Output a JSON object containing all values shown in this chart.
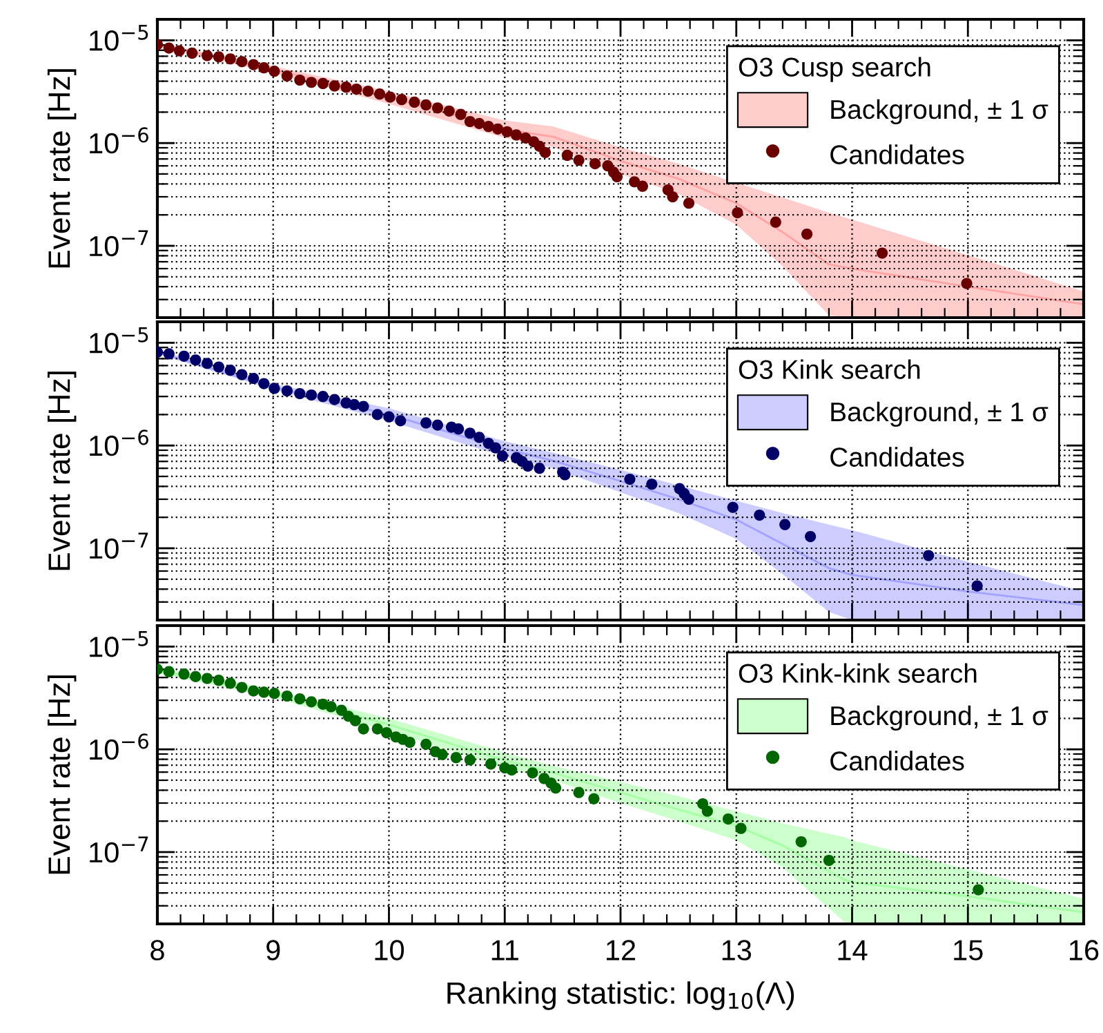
{
  "chart_data": [
    {
      "type": "scatter",
      "ylabel": "Event rate [Hz]",
      "legend_title": "O3 Cusp search",
      "log": "y",
      "grid": true,
      "legend": "top right",
      "marker": "circle",
      "tick_labels": "y",
      "xlim": [
        8,
        16
      ],
      "ylim": [
        2e-08,
        1.6e-05
      ],
      "xticks": [
        8,
        {
          "value": 8.2,
          "label": null
        },
        {
          "value": 8.4,
          "label": null
        },
        {
          "value": 8.6,
          "label": null
        },
        {
          "value": 8.8,
          "label": null
        },
        9,
        {
          "value": 9.2,
          "label": null
        },
        {
          "value": 9.4,
          "label": null
        },
        {
          "value": 9.6,
          "label": null
        },
        {
          "value": 9.8,
          "label": null
        },
        10,
        {
          "value": 10.2,
          "label": null
        },
        {
          "value": 10.4,
          "label": null
        },
        {
          "value": 10.6,
          "label": null
        },
        {
          "value": 10.8,
          "label": null
        },
        11,
        {
          "value": 11.2,
          "label": null
        },
        {
          "value": 11.4,
          "label": null
        },
        {
          "value": 11.6,
          "label": null
        },
        {
          "value": 11.8,
          "label": null
        },
        12,
        {
          "value": 12.2,
          "label": null
        },
        {
          "value": 12.4,
          "label": null
        },
        {
          "value": 12.6,
          "label": null
        },
        {
          "value": 12.8,
          "label": null
        },
        13,
        {
          "value": 13.2,
          "label": null
        },
        {
          "value": 13.4,
          "label": null
        },
        {
          "value": 13.6,
          "label": null
        },
        {
          "value": 13.8,
          "label": null
        },
        14,
        {
          "value": 14.2,
          "label": null
        },
        {
          "value": 14.4,
          "label": null
        },
        {
          "value": 14.6,
          "label": null
        },
        {
          "value": 14.8,
          "label": null
        },
        15,
        {
          "value": 15.2,
          "label": null
        },
        {
          "value": 15.4,
          "label": null
        },
        {
          "value": 15.6,
          "label": null
        },
        {
          "value": 15.8,
          "label": null
        },
        16
      ],
      "yticks": [
        {
          "value": 2e-08,
          "label": null
        },
        {
          "value": 3e-08,
          "label": null
        },
        {
          "value": 4e-08,
          "label": null
        },
        {
          "value": 5e-08,
          "label": null
        },
        {
          "value": 6e-08,
          "label": null
        },
        {
          "value": 7e-08,
          "label": null
        },
        {
          "value": 8e-08,
          "label": null
        },
        {
          "value": 9e-08,
          "label": null
        },
        {
          "value": 1e-07,
          "label": "10$^{−7}$"
        },
        {
          "value": 2e-07,
          "label": null
        },
        {
          "value": 3e-07,
          "label": null
        },
        {
          "value": 4e-07,
          "label": null
        },
        {
          "value": 5e-07,
          "label": null
        },
        {
          "value": 6e-07,
          "label": null
        },
        {
          "value": 7e-07,
          "label": null
        },
        {
          "value": 8e-07,
          "label": null
        },
        {
          "value": 9e-07,
          "label": null
        },
        {
          "value": 1e-06,
          "label": "10$^{−6}$"
        },
        {
          "value": 2e-06,
          "label": null
        },
        {
          "value": 3e-06,
          "label": null
        },
        {
          "value": 4e-06,
          "label": null
        },
        {
          "value": 5e-06,
          "label": null
        },
        {
          "value": 6e-06,
          "label": null
        },
        {
          "value": 7e-06,
          "label": null
        },
        {
          "value": 8e-06,
          "label": null
        },
        {
          "value": 9e-06,
          "label": null
        },
        {
          "value": 1e-05,
          "label": "10$^{−5}$"
        }
      ],
      "series": [
        {
          "type": "line",
          "name": "Background, ± 1 σ",
          "color": "#ffa2a2",
          "x": [
            8,
            9,
            10,
            11,
            11.42,
            12,
            12.5,
            13,
            13.4,
            13.8,
            14,
            15,
            16
          ],
          "marker": "none",
          "values": [
            9.1e-06,
            5.2e-06,
            2.8e-06,
            1.36e-06,
            1.15e-06,
            6.7e-07,
            4.5e-07,
            2.6e-07,
            1.36e-07,
            6.6e-08,
            6e-08,
            4e-08,
            2.7e-08
          ],
          "lower": [
            8.7e-06,
            4.8e-06,
            2.4e-06,
            1.12e-06,
            9.1e-07,
            5e-07,
            3.2e-07,
            1.6e-07,
            6.3e-08,
            2.1e-08,
            2e-08,
            2e-08,
            2e-08
          ],
          "upper": [
            9.5e-06,
            5.6e-06,
            3.2e-06,
            1.66e-06,
            1.45e-06,
            9.1e-07,
            6.3e-07,
            4.1e-07,
            2.95e-07,
            2.1e-07,
            1.8e-07,
            8.1e-08,
            3.6e-08
          ]
        },
        {
          "name": "Candidates",
          "color": "#6b0000",
          "x": [
            8.0,
            8.1,
            8.19,
            8.3,
            8.43,
            8.53,
            8.63,
            8.73,
            8.83,
            8.92,
            9.01,
            9.12,
            9.23,
            9.33,
            9.43,
            9.53,
            9.63,
            9.72,
            9.82,
            9.92,
            10.01,
            10.11,
            10.22,
            10.32,
            10.42,
            10.52,
            10.62,
            10.7,
            10.78,
            10.86,
            10.94,
            11.02,
            11.1,
            11.18,
            11.25,
            11.3,
            11.35,
            11.54,
            11.64,
            11.78,
            11.89,
            11.94,
            11.97,
            12.12,
            12.19,
            12.41,
            12.45,
            12.59,
            13.01,
            13.34,
            13.61,
            14.26,
            14.99
          ],
          "values": [
            9.1e-06,
            8.4e-06,
            7.9e-06,
            7.5e-06,
            7.1e-06,
            6.9e-06,
            6.6e-06,
            6.2e-06,
            5.8e-06,
            5.4e-06,
            5e-06,
            4.5e-06,
            4.1e-06,
            3.9e-06,
            3.8e-06,
            3.6e-06,
            3.5e-06,
            3.35e-06,
            3.2e-06,
            3e-06,
            2.8e-06,
            2.65e-06,
            2.5e-06,
            2.35e-06,
            2.2e-06,
            2.05e-06,
            1.9e-06,
            1.62e-06,
            1.55e-06,
            1.45e-06,
            1.37e-06,
            1.29e-06,
            1.2e-06,
            1.12e-06,
            1.03e-06,
            9.3e-07,
            8.1e-07,
            7.6e-07,
            6.8e-07,
            6.3e-07,
            6e-07,
            5.2e-07,
            4.7e-07,
            4.2e-07,
            3.8e-07,
            3.5e-07,
            3e-07,
            2.6e-07,
            2.1e-07,
            1.7e-07,
            1.3e-07,
            8.5e-08,
            4.3e-08
          ]
        }
      ]
    },
    {
      "type": "scatter",
      "ylabel": "Event rate [Hz]",
      "legend_title": "O3 Kink search",
      "log": "y",
      "grid": true,
      "legend": "top right",
      "marker": "circle",
      "tick_labels": "y",
      "xlim": [
        8,
        16
      ],
      "ylim": [
        2e-08,
        1.6e-05
      ],
      "xticks": [
        8,
        {
          "value": 8.2,
          "label": null
        },
        {
          "value": 8.4,
          "label": null
        },
        {
          "value": 8.6,
          "label": null
        },
        {
          "value": 8.8,
          "label": null
        },
        9,
        {
          "value": 9.2,
          "label": null
        },
        {
          "value": 9.4,
          "label": null
        },
        {
          "value": 9.6,
          "label": null
        },
        {
          "value": 9.8,
          "label": null
        },
        10,
        {
          "value": 10.2,
          "label": null
        },
        {
          "value": 10.4,
          "label": null
        },
        {
          "value": 10.6,
          "label": null
        },
        {
          "value": 10.8,
          "label": null
        },
        11,
        {
          "value": 11.2,
          "label": null
        },
        {
          "value": 11.4,
          "label": null
        },
        {
          "value": 11.6,
          "label": null
        },
        {
          "value": 11.8,
          "label": null
        },
        12,
        {
          "value": 12.2,
          "label": null
        },
        {
          "value": 12.4,
          "label": null
        },
        {
          "value": 12.6,
          "label": null
        },
        {
          "value": 12.8,
          "label": null
        },
        13,
        {
          "value": 13.2,
          "label": null
        },
        {
          "value": 13.4,
          "label": null
        },
        {
          "value": 13.6,
          "label": null
        },
        {
          "value": 13.8,
          "label": null
        },
        14,
        {
          "value": 14.2,
          "label": null
        },
        {
          "value": 14.4,
          "label": null
        },
        {
          "value": 14.6,
          "label": null
        },
        {
          "value": 14.8,
          "label": null
        },
        15,
        {
          "value": 15.2,
          "label": null
        },
        {
          "value": 15.4,
          "label": null
        },
        {
          "value": 15.6,
          "label": null
        },
        {
          "value": 15.8,
          "label": null
        },
        16
      ],
      "yticks": [
        {
          "value": 2e-08,
          "label": null
        },
        {
          "value": 3e-08,
          "label": null
        },
        {
          "value": 4e-08,
          "label": null
        },
        {
          "value": 5e-08,
          "label": null
        },
        {
          "value": 6e-08,
          "label": null
        },
        {
          "value": 7e-08,
          "label": null
        },
        {
          "value": 8e-08,
          "label": null
        },
        {
          "value": 9e-08,
          "label": null
        },
        {
          "value": 1e-07,
          "label": "10$^{−7}$"
        },
        {
          "value": 2e-07,
          "label": null
        },
        {
          "value": 3e-07,
          "label": null
        },
        {
          "value": 4e-07,
          "label": null
        },
        {
          "value": 5e-07,
          "label": null
        },
        {
          "value": 6e-07,
          "label": null
        },
        {
          "value": 7e-07,
          "label": null
        },
        {
          "value": 8e-07,
          "label": null
        },
        {
          "value": 9e-07,
          "label": null
        },
        {
          "value": 1e-06,
          "label": "10$^{−6}$"
        },
        {
          "value": 2e-06,
          "label": null
        },
        {
          "value": 3e-06,
          "label": null
        },
        {
          "value": 4e-06,
          "label": null
        },
        {
          "value": 5e-06,
          "label": null
        },
        {
          "value": 6e-06,
          "label": null
        },
        {
          "value": 7e-06,
          "label": null
        },
        {
          "value": 8e-06,
          "label": null
        },
        {
          "value": 9e-06,
          "label": null
        },
        {
          "value": 1e-05,
          "label": "10$^{−5}$"
        }
      ],
      "series": [
        {
          "type": "line",
          "name": "Background, ± 1 σ",
          "color": "#a2a2ff",
          "x": [
            8,
            9,
            10,
            11,
            11.42,
            12,
            12.5,
            13,
            13.4,
            13.8,
            14,
            15,
            16
          ],
          "marker": "none",
          "values": [
            8.1e-06,
            3.7e-06,
            2e-06,
            9.3e-07,
            7.1e-07,
            4.5e-07,
            3e-07,
            1.9e-07,
            1.1e-07,
            6.4e-08,
            5.5e-08,
            3.8e-08,
            2.8e-08
          ],
          "lower": [
            7.8e-06,
            3.5e-06,
            1.74e-06,
            7.8e-07,
            6e-07,
            3.5e-07,
            2.2e-07,
            1.23e-07,
            5.6e-08,
            2.4e-08,
            2e-08,
            2e-08,
            2e-08
          ],
          "upper": [
            8.5e-06,
            4e-06,
            2.3e-06,
            1.1e-06,
            8.5e-07,
            5.8e-07,
            4.1e-07,
            2.9e-07,
            2.2e-07,
            1.7e-07,
            1.5e-07,
            7.4e-08,
            3.8e-08
          ]
        },
        {
          "name": "Candidates",
          "color": "#000066",
          "x": [
            8.0,
            8.1,
            8.23,
            8.33,
            8.43,
            8.53,
            8.63,
            8.73,
            8.83,
            8.92,
            9.01,
            9.12,
            9.23,
            9.33,
            9.43,
            9.53,
            9.63,
            9.7,
            9.78,
            9.9,
            10.0,
            10.1,
            10.32,
            10.42,
            10.54,
            10.6,
            10.7,
            10.78,
            10.86,
            10.92,
            10.98,
            11.1,
            11.15,
            11.2,
            11.3,
            11.5,
            11.52,
            12.08,
            12.27,
            12.51,
            12.55,
            12.59,
            12.97,
            13.2,
            13.42,
            13.64,
            14.66,
            15.08
          ],
          "values": [
            8.1e-06,
            7.8e-06,
            7.4e-06,
            6.8e-06,
            6.3e-06,
            5.8e-06,
            5.4e-06,
            4.9e-06,
            4.5e-06,
            4e-06,
            3.6e-06,
            3.4e-06,
            3.2e-06,
            3.1e-06,
            3e-06,
            2.8e-06,
            2.6e-06,
            2.5e-06,
            2.4e-06,
            2e-06,
            1.9e-06,
            1.74e-06,
            1.66e-06,
            1.58e-06,
            1.51e-06,
            1.45e-06,
            1.32e-06,
            1.2e-06,
            1.05e-06,
            9.5e-07,
            7.9e-07,
            7.6e-07,
            7e-07,
            6.3e-07,
            6e-07,
            5.5e-07,
            5.2e-07,
            4.7e-07,
            4.2e-07,
            3.8e-07,
            3.4e-07,
            3e-07,
            2.5e-07,
            2.1e-07,
            1.7e-07,
            1.3e-07,
            8.5e-08,
            4.3e-08
          ]
        }
      ]
    },
    {
      "type": "scatter",
      "xlabel": "Ranking statistic: log$_{10}$(Λ)",
      "ylabel": "Event rate [Hz]",
      "legend_title": "O3 Kink-kink search",
      "log": "y",
      "grid": true,
      "legend": "top right",
      "marker": "circle",
      "xlim": [
        8,
        16
      ],
      "ylim": [
        2e-08,
        1.6e-05
      ],
      "xticks": [
        8,
        {
          "value": 8.2,
          "label": null
        },
        {
          "value": 8.4,
          "label": null
        },
        {
          "value": 8.6,
          "label": null
        },
        {
          "value": 8.8,
          "label": null
        },
        9,
        {
          "value": 9.2,
          "label": null
        },
        {
          "value": 9.4,
          "label": null
        },
        {
          "value": 9.6,
          "label": null
        },
        {
          "value": 9.8,
          "label": null
        },
        10,
        {
          "value": 10.2,
          "label": null
        },
        {
          "value": 10.4,
          "label": null
        },
        {
          "value": 10.6,
          "label": null
        },
        {
          "value": 10.8,
          "label": null
        },
        11,
        {
          "value": 11.2,
          "label": null
        },
        {
          "value": 11.4,
          "label": null
        },
        {
          "value": 11.6,
          "label": null
        },
        {
          "value": 11.8,
          "label": null
        },
        12,
        {
          "value": 12.2,
          "label": null
        },
        {
          "value": 12.4,
          "label": null
        },
        {
          "value": 12.6,
          "label": null
        },
        {
          "value": 12.8,
          "label": null
        },
        13,
        {
          "value": 13.2,
          "label": null
        },
        {
          "value": 13.4,
          "label": null
        },
        {
          "value": 13.6,
          "label": null
        },
        {
          "value": 13.8,
          "label": null
        },
        14,
        {
          "value": 14.2,
          "label": null
        },
        {
          "value": 14.4,
          "label": null
        },
        {
          "value": 14.6,
          "label": null
        },
        {
          "value": 14.8,
          "label": null
        },
        15,
        {
          "value": 15.2,
          "label": null
        },
        {
          "value": 15.4,
          "label": null
        },
        {
          "value": 15.6,
          "label": null
        },
        {
          "value": 15.8,
          "label": null
        },
        16
      ],
      "yticks": [
        {
          "value": 2e-08,
          "label": null
        },
        {
          "value": 3e-08,
          "label": null
        },
        {
          "value": 4e-08,
          "label": null
        },
        {
          "value": 5e-08,
          "label": null
        },
        {
          "value": 6e-08,
          "label": null
        },
        {
          "value": 7e-08,
          "label": null
        },
        {
          "value": 8e-08,
          "label": null
        },
        {
          "value": 9e-08,
          "label": null
        },
        {
          "value": 1e-07,
          "label": "10$^{−7}$"
        },
        {
          "value": 2e-07,
          "label": null
        },
        {
          "value": 3e-07,
          "label": null
        },
        {
          "value": 4e-07,
          "label": null
        },
        {
          "value": 5e-07,
          "label": null
        },
        {
          "value": 6e-07,
          "label": null
        },
        {
          "value": 7e-07,
          "label": null
        },
        {
          "value": 8e-07,
          "label": null
        },
        {
          "value": 9e-07,
          "label": null
        },
        {
          "value": 1e-06,
          "label": "10$^{−6}$"
        },
        {
          "value": 2e-06,
          "label": null
        },
        {
          "value": 3e-06,
          "label": null
        },
        {
          "value": 4e-06,
          "label": null
        },
        {
          "value": 5e-06,
          "label": null
        },
        {
          "value": 6e-06,
          "label": null
        },
        {
          "value": 7e-06,
          "label": null
        },
        {
          "value": 8e-06,
          "label": null
        },
        {
          "value": 9e-06,
          "label": null
        },
        {
          "value": 1e-05,
          "label": "10$^{−5}$"
        }
      ],
      "series": [
        {
          "type": "line",
          "name": "Background, ± 1 σ",
          "color": "#a2ffa2",
          "x": [
            8,
            9,
            10,
            11,
            11.42,
            12,
            12.5,
            13,
            13.4,
            13.93,
            14,
            15,
            16
          ],
          "marker": "none",
          "values": [
            5.9e-06,
            3.5e-06,
            1.74e-06,
            7.8e-07,
            5.9e-07,
            3.8e-07,
            2.6e-07,
            1.8e-07,
            1.16e-07,
            5.4e-08,
            5.1e-08,
            3.7e-08,
            2.6e-08
          ],
          "lower": [
            5.5e-06,
            3.2e-06,
            1.51e-06,
            6.6e-07,
            5e-07,
            3e-07,
            2e-07,
            1.3e-07,
            7.1e-08,
            2.1e-08,
            2e-08,
            2e-08,
            2e-08
          ],
          "upper": [
            6.3e-06,
            3.8e-06,
            2e-06,
            9.3e-07,
            6.9e-07,
            4.8e-07,
            3.5e-07,
            2.5e-07,
            1.9e-07,
            1.4e-07,
            1.3e-07,
            6.8e-08,
            3.5e-08
          ]
        },
        {
          "name": "Candidates",
          "color": "#006600",
          "x": [
            8.0,
            8.1,
            8.23,
            8.33,
            8.43,
            8.53,
            8.63,
            8.73,
            8.83,
            8.92,
            9.01,
            9.12,
            9.23,
            9.33,
            9.43,
            9.5,
            9.59,
            9.65,
            9.71,
            9.78,
            9.9,
            9.98,
            10.06,
            10.12,
            10.18,
            10.32,
            10.4,
            10.46,
            10.58,
            10.7,
            10.88,
            11.0,
            11.06,
            11.24,
            11.34,
            11.4,
            11.44,
            11.64,
            11.77,
            12.71,
            12.75,
            12.93,
            13.04,
            13.56,
            13.8,
            15.09
          ],
          "values": [
            6e-06,
            5.7e-06,
            5.4e-06,
            5.1e-06,
            4.9e-06,
            4.7e-06,
            4.4e-06,
            4e-06,
            3.7e-06,
            3.6e-06,
            3.5e-06,
            3.3e-06,
            3.1e-06,
            2.9e-06,
            2.75e-06,
            2.6e-06,
            2.4e-06,
            2.1e-06,
            1.9e-06,
            1.58e-06,
            1.58e-06,
            1.45e-06,
            1.32e-06,
            1.25e-06,
            1.17e-06,
            1.12e-06,
            9.5e-07,
            8.9e-07,
            8.3e-07,
            7.9e-07,
            7.2e-07,
            6.6e-07,
            6.3e-07,
            5.9e-07,
            5.2e-07,
            4.7e-07,
            4.2e-07,
            3.8e-07,
            3.3e-07,
            2.95e-07,
            2.5e-07,
            2.1e-07,
            1.7e-07,
            1.26e-07,
            8.3e-08,
            4.3e-08
          ]
        }
      ]
    }
  ]
}
